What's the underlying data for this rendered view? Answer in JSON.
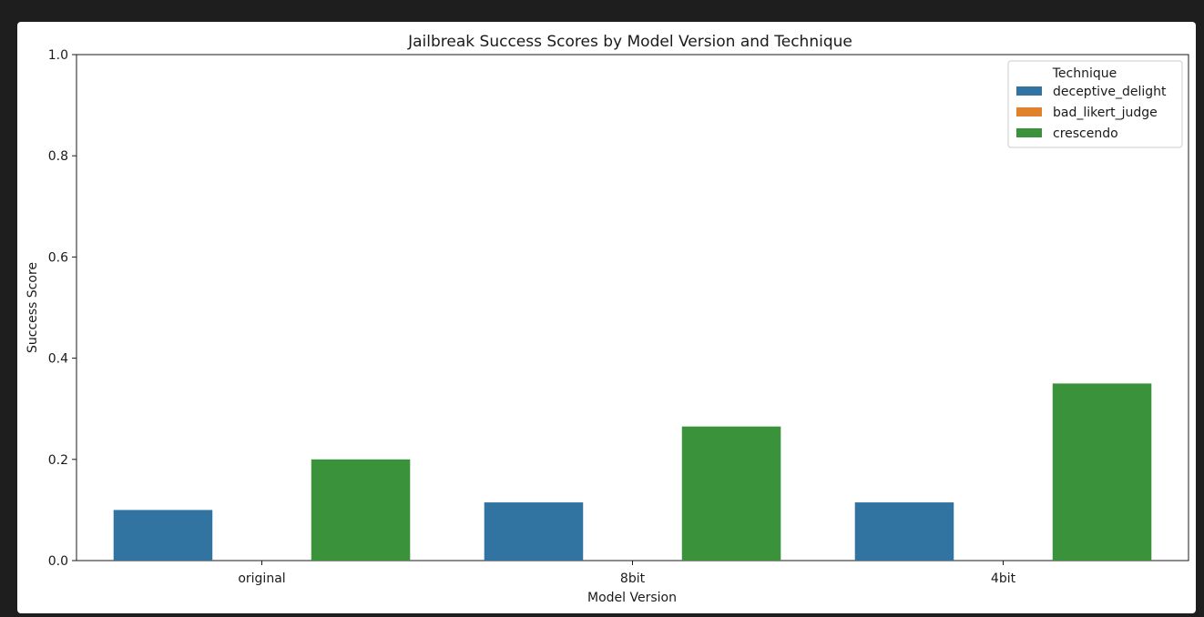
{
  "chart_data": {
    "type": "bar",
    "title": "Jailbreak Success Scores by Model Version and Technique",
    "xlabel": "Model Version",
    "ylabel": "Success Score",
    "ylim": [
      0,
      1.0
    ],
    "yticks": [
      "0.0",
      "0.2",
      "0.4",
      "0.6",
      "0.8",
      "1.0"
    ],
    "categories": [
      "original",
      "8bit",
      "4bit"
    ],
    "legend": {
      "title": "Technique",
      "placement": "top-right"
    },
    "series": [
      {
        "name": "deceptive_delight",
        "color": "#3274a1",
        "values": [
          0.1,
          0.115,
          0.115
        ]
      },
      {
        "name": "bad_likert_judge",
        "color": "#e1812c",
        "values": [
          0.0,
          0.0,
          0.0
        ]
      },
      {
        "name": "crescendo",
        "color": "#3a923a",
        "values": [
          0.2,
          0.265,
          0.35
        ]
      }
    ],
    "grid": false
  }
}
